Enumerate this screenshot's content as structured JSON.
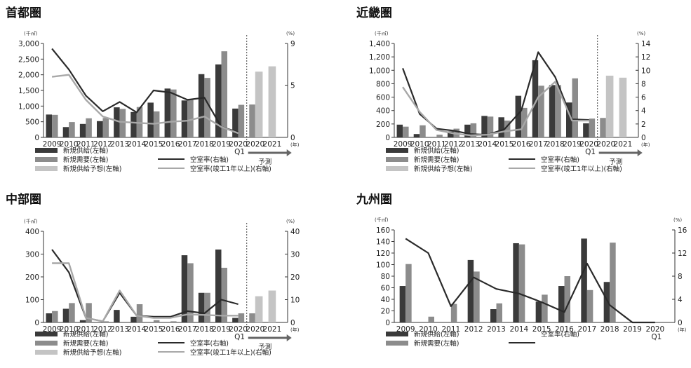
{
  "legend_labels": {
    "supply": "新規供給(左軸)",
    "demand": "新規需要(左軸)",
    "forecast": "新規供給予想(左軸)",
    "vacancy": "空室率(右軸)",
    "vacancy1y": "空室率(竣工1年以上)(右軸)"
  },
  "forecast_label": "予測",
  "unit_left": "(千㎡)",
  "unit_right": "(%)",
  "year_unit": "(年)",
  "colors": {
    "supply": "#3a3a3a",
    "demand": "#8c8c8c",
    "forecast": "#c4c4c4",
    "vacancy": "#2a2a2a",
    "vacancy1y": "#a8a8a8"
  },
  "chart_data": [
    {
      "title": "首都圏",
      "type": "bar",
      "categories": [
        "2009",
        "2010",
        "2011",
        "2012",
        "2013",
        "2014",
        "2015",
        "2016",
        "2017",
        "2018",
        "2019",
        "2020",
        "2020",
        "2021"
      ],
      "category_sub": [
        "",
        "",
        "",
        "",
        "",
        "",
        "",
        "",
        "",
        "",
        "",
        "Q1",
        "",
        ""
      ],
      "forecast_from": 12,
      "ylim": [
        0,
        3000
      ],
      "yticks": [
        "0",
        "500",
        "1,000",
        "1,500",
        "2,000",
        "2,500",
        "3,000"
      ],
      "y2lim": [
        0,
        9
      ],
      "y2ticks": [
        "0",
        "5",
        "9"
      ],
      "y2tickvals": [
        0,
        5,
        9
      ],
      "series": [
        {
          "name": "新規供給(左軸)",
          "values": [
            730,
            330,
            430,
            520,
            960,
            810,
            1110,
            1560,
            1180,
            2020,
            2330,
            920,
            null,
            null
          ]
        },
        {
          "name": "新規需要(左軸)",
          "values": [
            720,
            490,
            610,
            620,
            910,
            970,
            830,
            1530,
            1230,
            1900,
            2750,
            1040,
            1050,
            null
          ]
        },
        {
          "name": "新規供給予想(左軸)",
          "values": [
            null,
            null,
            null,
            null,
            null,
            null,
            null,
            null,
            null,
            null,
            null,
            null,
            2100,
            2270
          ]
        }
      ],
      "lines": [
        {
          "name": "空室率(右軸)",
          "values": [
            8.5,
            6.5,
            4.0,
            2.5,
            3.4,
            2.4,
            4.5,
            4.3,
            3.6,
            3.8,
            1.0,
            0.5,
            null,
            null
          ]
        },
        {
          "name": "空室率(竣工1年以上)(右軸)",
          "values": [
            5.8,
            6.0,
            3.6,
            2.0,
            1.5,
            1.4,
            1.3,
            1.5,
            1.6,
            2.0,
            1.0,
            0.4,
            null,
            null
          ]
        }
      ],
      "show_forecast_legend": true,
      "show_vacancy1y_legend": true
    },
    {
      "title": "近畿圏",
      "type": "bar",
      "categories": [
        "2009",
        "2010",
        "2011",
        "2012",
        "2013",
        "2014",
        "2015",
        "2016",
        "2017",
        "2018",
        "2019",
        "2020",
        "2020",
        "2021"
      ],
      "category_sub": [
        "",
        "",
        "",
        "",
        "",
        "",
        "",
        "",
        "",
        "",
        "",
        "Q1",
        "",
        ""
      ],
      "forecast_from": 12,
      "ylim": [
        0,
        1400
      ],
      "yticks": [
        "0",
        "200",
        "400",
        "600",
        "800",
        "1,000",
        "1,200",
        "1,400"
      ],
      "y2lim": [
        0,
        14
      ],
      "y2ticks": [
        "0",
        "2",
        "4",
        "6",
        "8",
        "10",
        "12",
        "14"
      ],
      "y2tickvals": [
        0,
        2,
        4,
        6,
        8,
        10,
        12,
        14
      ],
      "series": [
        {
          "name": "新規供給(左軸)",
          "values": [
            190,
            50,
            0,
            90,
            190,
            320,
            300,
            620,
            1150,
            780,
            520,
            210,
            null,
            null
          ]
        },
        {
          "name": "新規需要(左軸)",
          "values": [
            160,
            180,
            40,
            130,
            210,
            310,
            250,
            440,
            770,
            780,
            880,
            280,
            290,
            null
          ]
        },
        {
          "name": "新規供給予想(左軸)",
          "values": [
            null,
            null,
            null,
            null,
            null,
            null,
            null,
            null,
            null,
            null,
            null,
            null,
            920,
            890
          ]
        }
      ],
      "lines": [
        {
          "name": "空室率(右軸)",
          "values": [
            10.3,
            3.5,
            1.3,
            1.0,
            0.5,
            0.4,
            1.2,
            4.0,
            12.7,
            9.0,
            2.7,
            2.6,
            null,
            null
          ]
        },
        {
          "name": "空室率(竣工1年以上)(右軸)",
          "values": [
            7.5,
            3.8,
            1.1,
            0.6,
            0.3,
            0.4,
            0.9,
            1.2,
            6.0,
            8.3,
            2.5,
            2.5,
            null,
            null
          ]
        }
      ],
      "show_forecast_legend": true,
      "show_vacancy1y_legend": true
    },
    {
      "title": "中部圏",
      "type": "bar",
      "categories": [
        "2009",
        "2010",
        "2011",
        "2012",
        "2013",
        "2014",
        "2015",
        "2016",
        "2017",
        "2018",
        "2019",
        "2020",
        "2020",
        "2021"
      ],
      "category_sub": [
        "",
        "",
        "",
        "",
        "",
        "",
        "",
        "",
        "",
        "",
        "",
        "Q1",
        "",
        ""
      ],
      "forecast_from": 12,
      "ylim": [
        0,
        400
      ],
      "yticks": [
        "0",
        "100",
        "200",
        "300",
        "400"
      ],
      "y2lim": [
        0,
        40
      ],
      "y2ticks": [
        "0",
        "10",
        "20",
        "30",
        "40"
      ],
      "y2tickvals": [
        0,
        10,
        20,
        30,
        40
      ],
      "series": [
        {
          "name": "新規供給(左軸)",
          "values": [
            40,
            60,
            10,
            0,
            55,
            25,
            0,
            0,
            295,
            130,
            320,
            20,
            null,
            null
          ]
        },
        {
          "name": "新規需要(左軸)",
          "values": [
            50,
            85,
            85,
            5,
            0,
            80,
            10,
            5,
            260,
            130,
            240,
            40,
            40,
            null
          ]
        },
        {
          "name": "新規供給予想(左軸)",
          "values": [
            null,
            null,
            null,
            null,
            null,
            null,
            null,
            null,
            null,
            null,
            null,
            null,
            115,
            140
          ]
        }
      ],
      "lines": [
        {
          "name": "空室率(右軸)",
          "values": [
            32,
            22,
            2,
            0.5,
            13,
            3,
            2.5,
            2.5,
            5,
            4,
            10,
            8,
            null,
            null
          ]
        },
        {
          "name": "空室率(竣工1年以上)(右軸)",
          "values": [
            26,
            26,
            2,
            0.5,
            14,
            3,
            2,
            2,
            3.5,
            3.3,
            3,
            3,
            null,
            null
          ]
        }
      ],
      "show_forecast_legend": true,
      "show_vacancy1y_legend": true
    },
    {
      "title": "九州圏",
      "type": "bar",
      "categories": [
        "2009",
        "2010",
        "2011",
        "2012",
        "2013",
        "2014",
        "2015",
        "2016",
        "2017",
        "2018",
        "2019",
        "2020"
      ],
      "category_sub": [
        "",
        "",
        "",
        "",
        "",
        "",
        "",
        "",
        "",
        "",
        "",
        "Q1"
      ],
      "forecast_from": null,
      "ylim": [
        0,
        160
      ],
      "yticks": [
        "0",
        "20",
        "40",
        "60",
        "80",
        "100",
        "120",
        "140",
        "160"
      ],
      "y2lim": [
        0,
        16
      ],
      "y2ticks": [
        "0",
        "4",
        "8",
        "12",
        "16"
      ],
      "y2tickvals": [
        0,
        4,
        8,
        12,
        16
      ],
      "series": [
        {
          "name": "新規供給(左軸)",
          "values": [
            63,
            0,
            0,
            108,
            23,
            137,
            36,
            63,
            145,
            70,
            0,
            0
          ]
        },
        {
          "name": "新規需要(左軸)",
          "values": [
            101,
            10,
            32,
            88,
            33,
            135,
            48,
            80,
            56,
            138,
            0,
            0
          ]
        }
      ],
      "lines": [
        {
          "name": "空室率(右軸)",
          "values": [
            14.5,
            12.0,
            2.8,
            7.8,
            5.8,
            5.0,
            3.5,
            1.8,
            10.2,
            3.0,
            0,
            0
          ]
        }
      ],
      "show_forecast_legend": false,
      "show_vacancy1y_legend": false
    }
  ]
}
